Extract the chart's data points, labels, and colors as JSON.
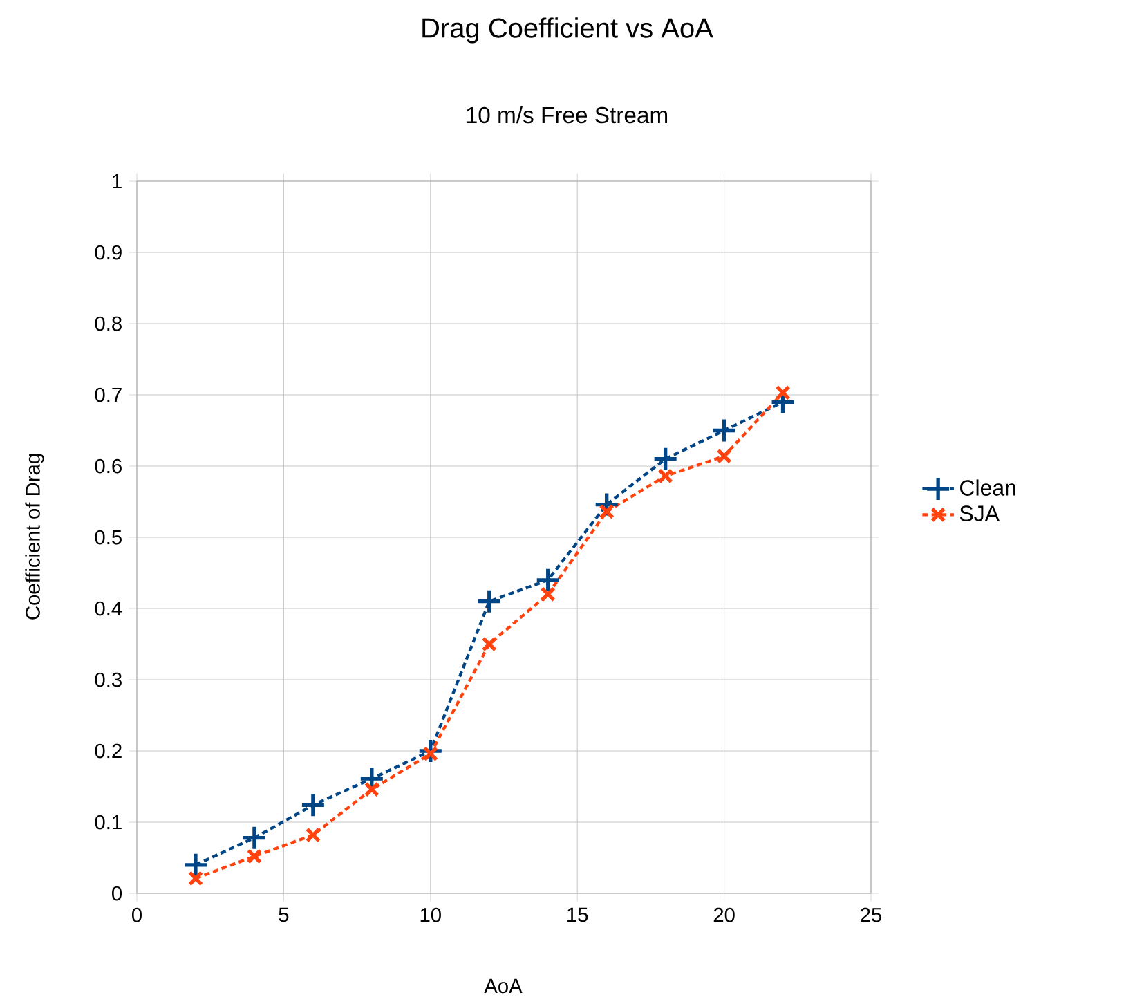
{
  "chart_data": {
    "type": "line",
    "title": "Drag Coefficient vs AoA",
    "subtitle": "10 m/s Free Stream",
    "xlabel": "AoA",
    "ylabel": "Coefficient of Drag",
    "x": [
      2,
      4,
      6,
      8,
      10,
      12,
      14,
      16,
      18,
      20,
      22
    ],
    "series": [
      {
        "name": "Clean",
        "color": "#004586",
        "marker": "plus",
        "values": [
          0.04,
          0.078,
          0.124,
          0.161,
          0.2,
          0.41,
          0.44,
          0.546,
          0.61,
          0.65,
          0.69
        ]
      },
      {
        "name": "SJA",
        "color": "#ff420e",
        "marker": "cross",
        "values": [
          0.021,
          0.052,
          0.082,
          0.146,
          0.196,
          0.35,
          0.42,
          0.536,
          0.586,
          0.614,
          0.703
        ]
      }
    ],
    "xlim": [
      0,
      25
    ],
    "xticks": [
      0,
      5,
      10,
      15,
      20,
      25
    ],
    "ylim": [
      0,
      1
    ],
    "yticks": [
      0,
      0.1,
      0.2,
      0.3,
      0.4,
      0.5,
      0.6,
      0.7,
      0.8,
      0.9,
      1
    ],
    "grid": true,
    "legend": "right",
    "line_style": "dashed"
  }
}
